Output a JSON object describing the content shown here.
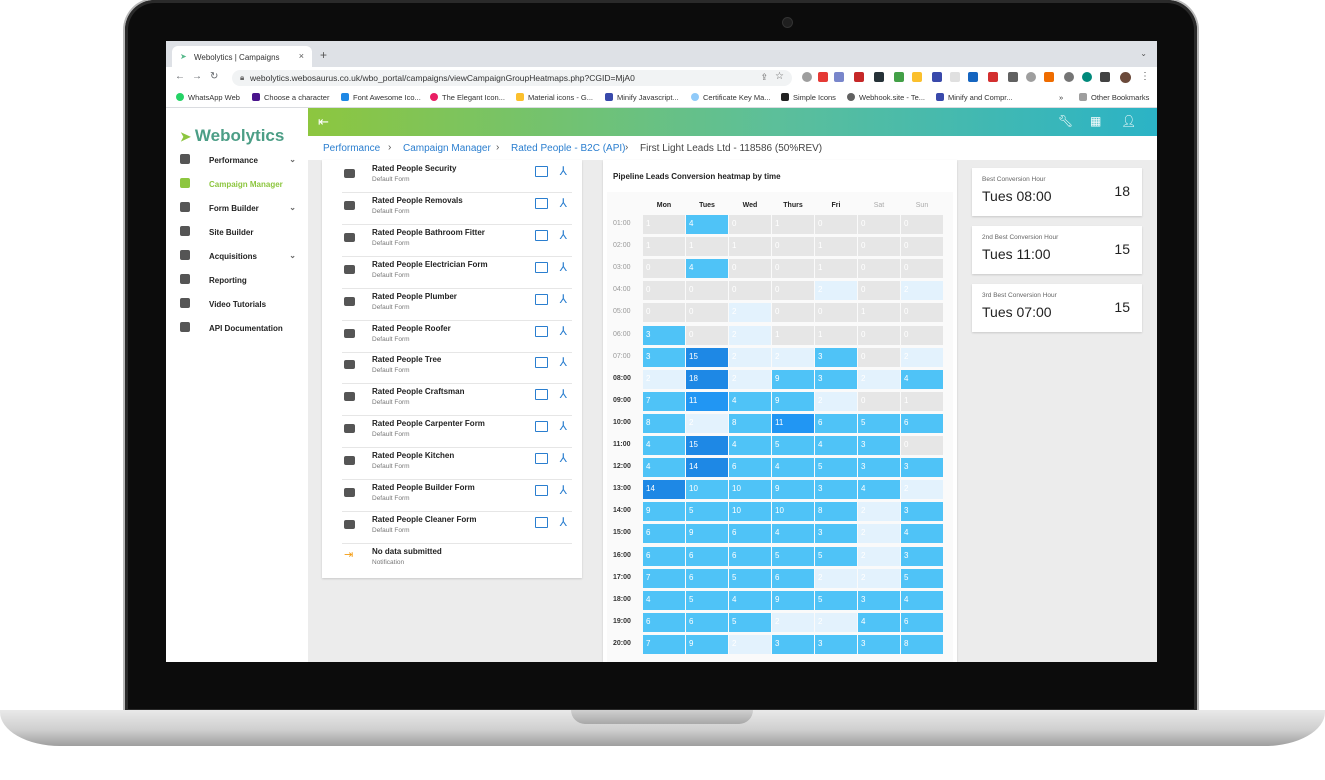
{
  "browser": {
    "tab_title": "Webolytics | Campaigns",
    "url": "webolytics.webosaurus.co.uk/wbo_portal/campaigns/viewCampaignGroupHeatmaps.php?CGID=MjA0",
    "bookmarks": [
      "WhatsApp Web",
      "Choose a character",
      "Font Awesome Ico...",
      "The Elegant Icon...",
      "Material icons - G...",
      "Minify Javascript...",
      "Certificate Key Ma...",
      "Simple Icons",
      "Webhook.site - Te...",
      "Minify and Compr..."
    ],
    "bookmarks_more": "»",
    "other_bookmarks": "Other Bookmarks"
  },
  "sidebar": {
    "logo": "Webolytics",
    "items": [
      {
        "label": "Performance",
        "icon": "dashboard-icon",
        "has_chevron": true
      },
      {
        "label": "Campaign Manager",
        "icon": "trend-icon",
        "active": true
      },
      {
        "label": "Form Builder",
        "icon": "form-icon",
        "has_chevron": true
      },
      {
        "label": "Site Builder",
        "icon": "browser-icon"
      },
      {
        "label": "Acquisitions",
        "icon": "people-icon",
        "has_chevron": true
      },
      {
        "label": "Reporting",
        "icon": "report-icon"
      },
      {
        "label": "Video Tutorials",
        "icon": "video-icon"
      },
      {
        "label": "API Documentation",
        "icon": "book-icon"
      }
    ]
  },
  "breadcrumb": [
    "Performance",
    "Campaign Manager",
    "Rated People - B2C (API)",
    "First Light Leads Ltd - 118586 (50%REV)"
  ],
  "forms": [
    {
      "name": "Rated People Security",
      "sub": "Default Form"
    },
    {
      "name": "Rated People Removals",
      "sub": "Default Form"
    },
    {
      "name": "Rated People Bathroom Fitter",
      "sub": "Default Form"
    },
    {
      "name": "Rated People Electrician Form",
      "sub": "Default Form"
    },
    {
      "name": "Rated People Plumber",
      "sub": "Default Form"
    },
    {
      "name": "Rated People Roofer",
      "sub": "Default Form"
    },
    {
      "name": "Rated People Tree",
      "sub": "Default Form"
    },
    {
      "name": "Rated People Craftsman",
      "sub": "Default Form"
    },
    {
      "name": "Rated People Carpenter Form",
      "sub": "Default Form"
    },
    {
      "name": "Rated People Kitchen",
      "sub": "Default Form"
    },
    {
      "name": "Rated People Builder Form",
      "sub": "Default Form"
    },
    {
      "name": "Rated People Cleaner Form",
      "sub": "Default Form"
    },
    {
      "name": "No data submitted",
      "sub": "Notification",
      "note": true
    }
  ],
  "heatmap": {
    "title": "Pipeline Leads Conversion heatmap by time",
    "days": [
      "Mon",
      "Tues",
      "Wed",
      "Thurs",
      "Fri",
      "Sat",
      "Sun"
    ],
    "hours": [
      "01:00",
      "02:00",
      "03:00",
      "04:00",
      "05:00",
      "06:00",
      "07:00",
      "08:00",
      "09:00",
      "10:00",
      "11:00",
      "12:00",
      "13:00",
      "14:00",
      "15:00",
      "16:00",
      "17:00",
      "18:00",
      "19:00",
      "20:00"
    ],
    "values": [
      [
        1,
        4,
        0,
        1,
        0,
        0,
        0
      ],
      [
        1,
        1,
        1,
        0,
        1,
        0,
        0
      ],
      [
        0,
        4,
        0,
        0,
        1,
        0,
        0
      ],
      [
        0,
        0,
        0,
        0,
        2,
        0,
        2
      ],
      [
        0,
        0,
        2,
        0,
        0,
        1,
        0
      ],
      [
        3,
        0,
        2,
        1,
        1,
        0,
        0
      ],
      [
        3,
        15,
        2,
        2,
        3,
        0,
        2
      ],
      [
        2,
        18,
        2,
        9,
        3,
        2,
        4
      ],
      [
        7,
        11,
        4,
        9,
        2,
        0,
        1
      ],
      [
        8,
        2,
        8,
        11,
        6,
        5,
        6
      ],
      [
        4,
        15,
        4,
        5,
        4,
        3,
        0
      ],
      [
        4,
        14,
        6,
        4,
        5,
        3,
        3
      ],
      [
        14,
        10,
        10,
        9,
        3,
        4,
        2
      ],
      [
        9,
        5,
        10,
        10,
        8,
        2,
        3
      ],
      [
        6,
        9,
        6,
        4,
        3,
        2,
        4
      ],
      [
        6,
        6,
        6,
        5,
        5,
        2,
        3
      ],
      [
        7,
        6,
        5,
        6,
        2,
        2,
        5
      ],
      [
        4,
        5,
        4,
        9,
        5,
        3,
        4
      ],
      [
        6,
        6,
        5,
        2,
        2,
        4,
        6
      ],
      [
        7,
        9,
        2,
        3,
        3,
        3,
        8
      ]
    ]
  },
  "stats": [
    {
      "label": "Best Conversion Hour",
      "value": "Tues 08:00",
      "count": "18"
    },
    {
      "label": "2nd Best Conversion Hour",
      "value": "Tues 11:00",
      "count": "15"
    },
    {
      "label": "3rd Best Conversion Hour",
      "value": "Tues 07:00",
      "count": "15"
    }
  ],
  "colors": {
    "accent_green": "#8dc63f",
    "teal": "#4c9e86",
    "link_blue": "#2a7ecf",
    "fab_blue": "#2196f3"
  }
}
